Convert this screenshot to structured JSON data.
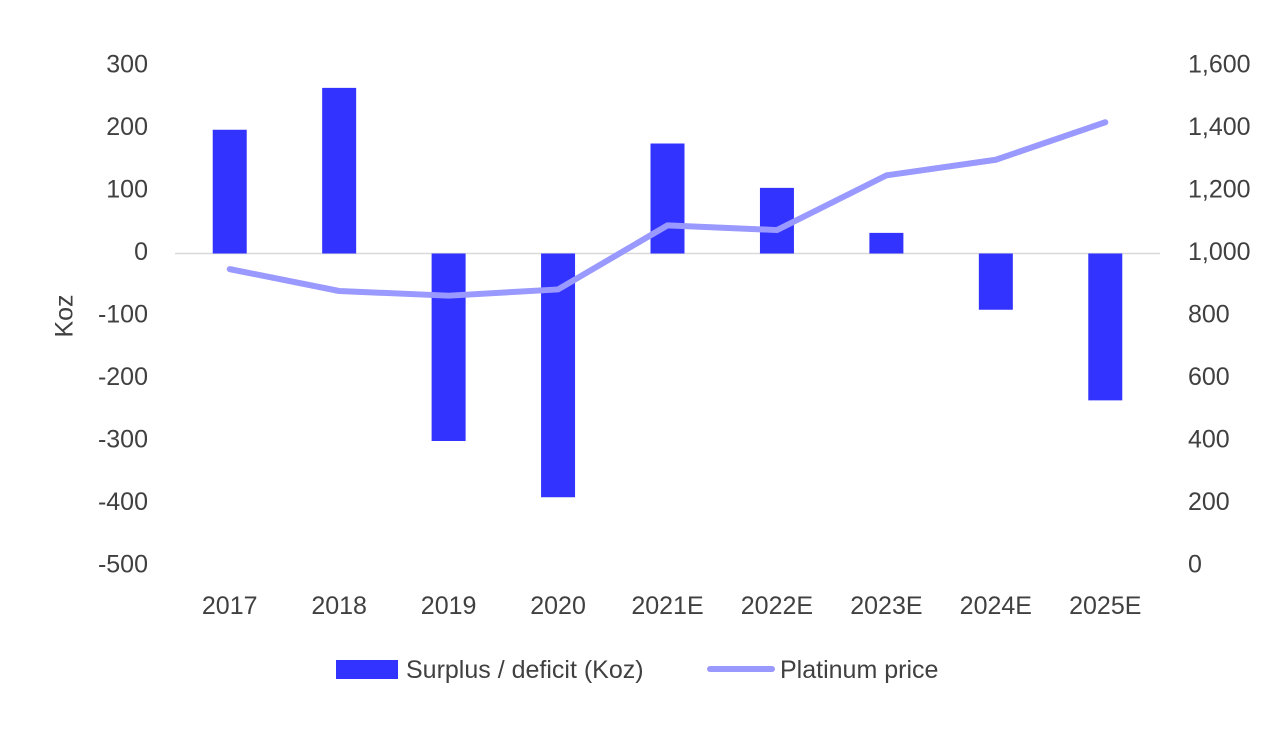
{
  "chart_data": {
    "type": "bar",
    "categories": [
      "2017",
      "2018",
      "2019",
      "2020",
      "2021E",
      "2022E",
      "2023E",
      "2024E",
      "2025E"
    ],
    "series": [
      {
        "name": "Surplus / deficit (Koz)",
        "type": "bar",
        "axis": "left",
        "color": "#3333ff",
        "values": [
          198,
          265,
          -300,
          -390,
          176,
          105,
          33,
          -90,
          -235
        ]
      },
      {
        "name": "Platinum price",
        "type": "line",
        "axis": "right",
        "color": "#9999ff",
        "values": [
          950,
          880,
          865,
          885,
          1090,
          1075,
          1250,
          1300,
          1420
        ]
      }
    ],
    "ylabel": "Koz",
    "ylim": [
      -500,
      300
    ],
    "y_ticks": [
      "300",
      "200",
      "100",
      "0",
      "-100",
      "-200",
      "-300",
      "-400",
      "-500"
    ],
    "y2lim": [
      0,
      1600
    ],
    "y2_ticks": [
      "1,600",
      "1,400",
      "1,200",
      "1,000",
      "800",
      "600",
      "400",
      "200",
      "0"
    ],
    "grid": false,
    "legend_position": "bottom"
  }
}
